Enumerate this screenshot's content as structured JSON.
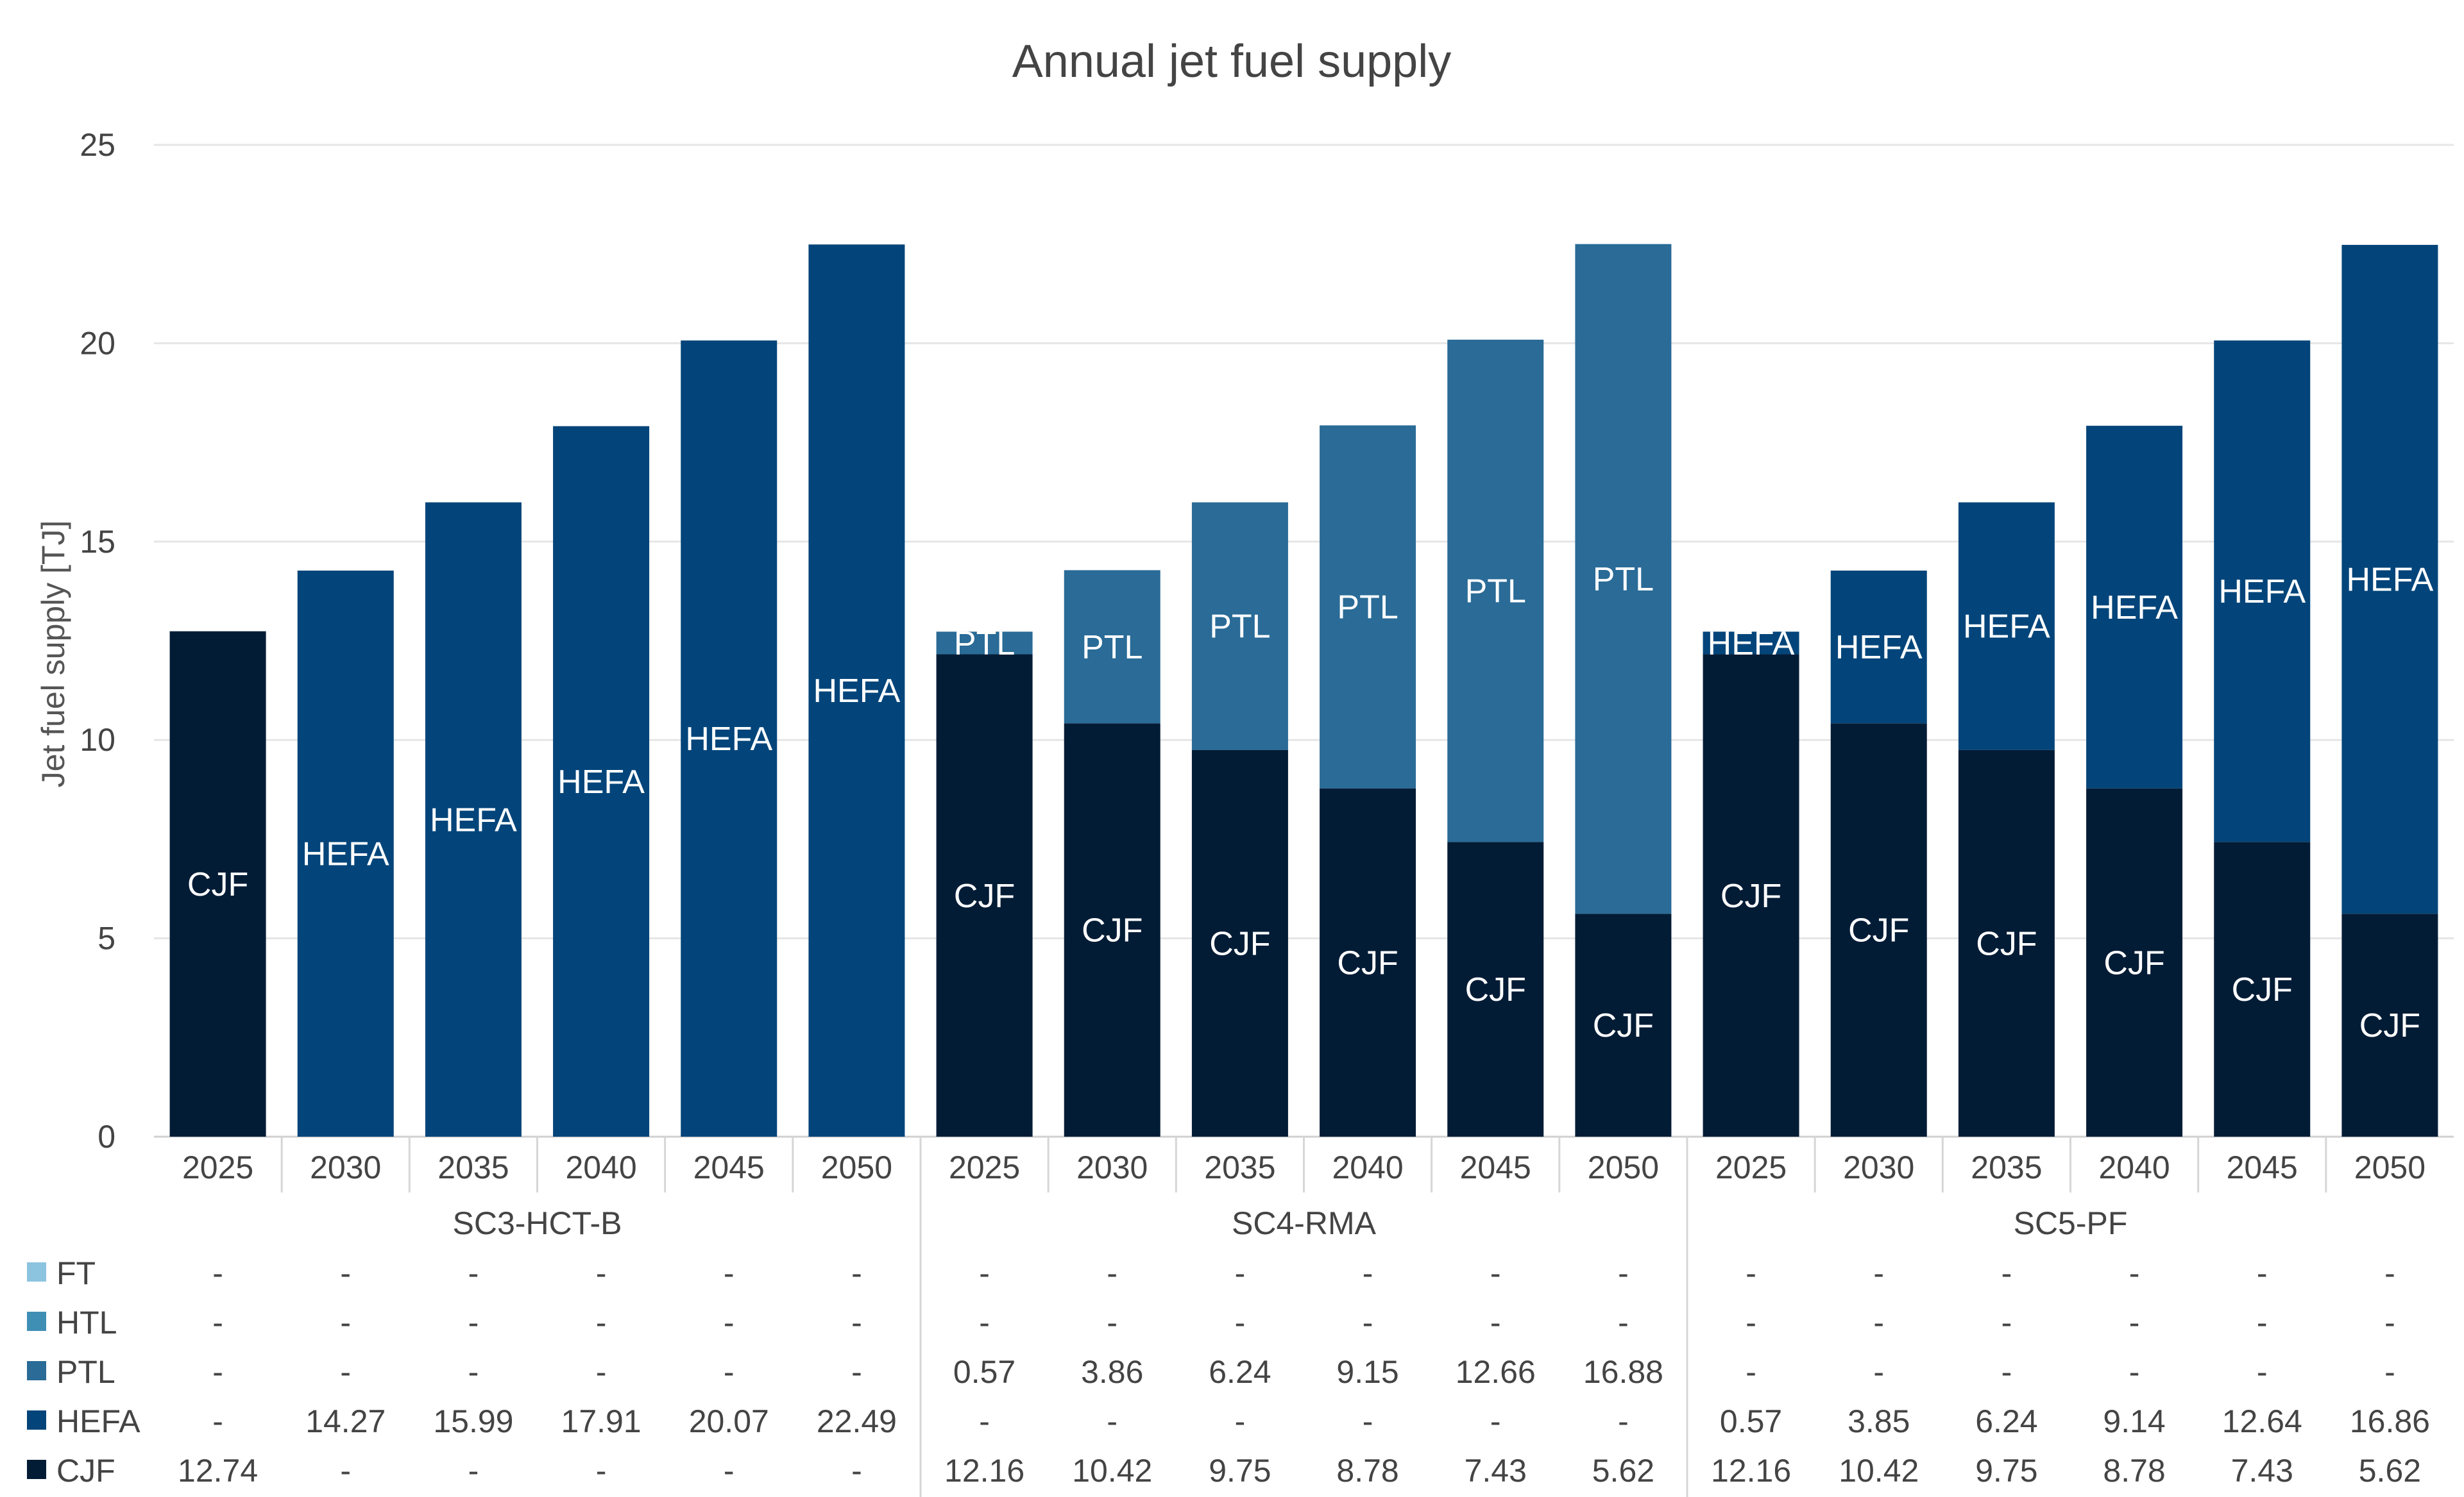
{
  "chart_data": {
    "type": "bar",
    "stacked": true,
    "title": "Annual jet fuel supply",
    "ylabel": "Jet fuel supply [TJ]",
    "xlabel": "",
    "ylim": [
      0,
      25
    ],
    "yticks": [
      0,
      5,
      10,
      15,
      20,
      25
    ],
    "grid": true,
    "legend_position": "bottom-left data table",
    "groups": [
      "SC3-HCT-B",
      "SC4-RMA",
      "SC5-PF"
    ],
    "years": [
      "2025",
      "2030",
      "2035",
      "2040",
      "2045",
      "2050"
    ],
    "categories": [
      "2025",
      "2030",
      "2035",
      "2040",
      "2045",
      "2050",
      "2025",
      "2030",
      "2035",
      "2040",
      "2045",
      "2050",
      "2025",
      "2030",
      "2035",
      "2040",
      "2045",
      "2050"
    ],
    "series": [
      {
        "name": "FT",
        "color": "#8cc4df",
        "values": [
          null,
          null,
          null,
          null,
          null,
          null,
          null,
          null,
          null,
          null,
          null,
          null,
          null,
          null,
          null,
          null,
          null,
          null
        ]
      },
      {
        "name": "HTL",
        "color": "#3f8fb5",
        "values": [
          null,
          null,
          null,
          null,
          null,
          null,
          null,
          null,
          null,
          null,
          null,
          null,
          null,
          null,
          null,
          null,
          null,
          null
        ]
      },
      {
        "name": "PTL",
        "color": "#2a6b97",
        "values": [
          null,
          null,
          null,
          null,
          null,
          null,
          0.57,
          3.86,
          6.24,
          9.15,
          12.66,
          16.88,
          null,
          null,
          null,
          null,
          null,
          null
        ]
      },
      {
        "name": "HEFA",
        "color": "#03457a",
        "values": [
          null,
          14.27,
          15.99,
          17.91,
          20.07,
          22.49,
          null,
          null,
          null,
          null,
          null,
          null,
          0.57,
          3.85,
          6.24,
          9.14,
          12.64,
          16.86
        ]
      },
      {
        "name": "CJF",
        "color": "#031c36",
        "values": [
          12.74,
          null,
          null,
          null,
          null,
          null,
          12.16,
          10.42,
          9.75,
          8.78,
          7.43,
          5.62,
          12.16,
          10.42,
          9.75,
          8.78,
          7.43,
          5.62
        ]
      }
    ],
    "table_rows": [
      {
        "name": "FT",
        "cells": [
          "-",
          "-",
          "-",
          "-",
          "-",
          "-",
          "-",
          "-",
          "-",
          "-",
          "-",
          "-",
          "-",
          "-",
          "-",
          "-",
          "-",
          "-"
        ]
      },
      {
        "name": "HTL",
        "cells": [
          "-",
          "-",
          "-",
          "-",
          "-",
          "-",
          "-",
          "-",
          "-",
          "-",
          "-",
          "-",
          "-",
          "-",
          "-",
          "-",
          "-",
          "-"
        ]
      },
      {
        "name": "PTL",
        "cells": [
          "-",
          "-",
          "-",
          "-",
          "-",
          "-",
          "0.57",
          "3.86",
          "6.24",
          "9.15",
          "12.66",
          "16.88",
          "-",
          "-",
          "-",
          "-",
          "-",
          "-"
        ]
      },
      {
        "name": "HEFA",
        "cells": [
          "-",
          "14.27",
          "15.99",
          "17.91",
          "20.07",
          "22.49",
          "-",
          "-",
          "-",
          "-",
          "-",
          "-",
          "0.57",
          "3.85",
          "6.24",
          "9.14",
          "12.64",
          "16.86"
        ]
      },
      {
        "name": "CJF",
        "cells": [
          "12.74",
          "-",
          "-",
          "-",
          "-",
          "-",
          "12.16",
          "10.42",
          "9.75",
          "8.78",
          "7.43",
          "5.62",
          "12.16",
          "10.42",
          "9.75",
          "8.78",
          "7.43",
          "5.62"
        ]
      }
    ]
  }
}
